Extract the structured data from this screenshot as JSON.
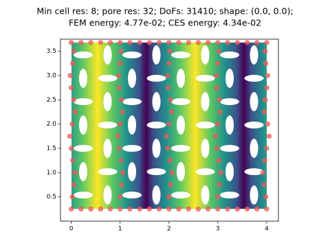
{
  "chart_data": {
    "type": "scatter",
    "title": [
      "Min cell res: 8; pore res: 32; DoFs: 31410; shape: (0.0, 0.0);",
      "FEM energy: 4.77e-02; CES energy: 4.34e-02"
    ],
    "xlim": [
      -0.22,
      4.24
    ],
    "ylim": [
      0.0,
      3.75
    ],
    "xticks": [
      0,
      1,
      2,
      3,
      4
    ],
    "yticks": [
      0.5,
      {
        "value": 1.0,
        "label": "1.0"
      },
      1.5,
      {
        "value": 2.0,
        "label": "2.0"
      },
      2.5,
      {
        "value": 3.0,
        "label": "3.0"
      },
      3.5
    ],
    "color": "#ee5a5a",
    "x": [
      0,
      0.2,
      0.4,
      0.6,
      0.8,
      1,
      1.2,
      1.4,
      1.6,
      1.8,
      2,
      2.2,
      2.4,
      2.6,
      2.8,
      3,
      3.2,
      3.4,
      3.6,
      3.8,
      4,
      0,
      0.2,
      0.4,
      0.6,
      0.8,
      1,
      1.2,
      1.4,
      1.6,
      1.8,
      2,
      2.2,
      2.4,
      2.6,
      2.8,
      3,
      3.2,
      3.4,
      3.6,
      3.8,
      4,
      0.02,
      0.05,
      0.08,
      0.03,
      0,
      -0.03,
      0.02,
      0.08,
      0.05,
      0,
      -0.02,
      0.03,
      0.05,
      3.98,
      3.95,
      3.92,
      3.96,
      4.0,
      4.05,
      4.02,
      3.95,
      3.97,
      4.0,
      4.02,
      3.98,
      3.97,
      1,
      1.03,
      1.06,
      1.02,
      0.98,
      0.95,
      1,
      1.05,
      1.03,
      0.98,
      0.97,
      1,
      1.02,
      2,
      2.03,
      2.06,
      2.02,
      1.98,
      1.95,
      2,
      2.05,
      2.03,
      1.98,
      1.97,
      2,
      2.02,
      3,
      3.03,
      3.06,
      3.02,
      2.98,
      2.95,
      3,
      3.05,
      3.03,
      2.98,
      2.97,
      3,
      3.02
    ],
    "y": [
      3.68,
      3.68,
      3.68,
      3.68,
      3.68,
      3.68,
      3.68,
      3.68,
      3.68,
      3.68,
      3.68,
      3.68,
      3.68,
      3.68,
      3.68,
      3.68,
      3.68,
      3.68,
      3.68,
      3.68,
      3.68,
      0.25,
      0.25,
      0.25,
      0.25,
      0.25,
      0.25,
      0.25,
      0.25,
      0.25,
      0.25,
      0.25,
      0.25,
      0.25,
      0.25,
      0.25,
      0.25,
      0.25,
      0.25,
      0.25,
      0.25,
      0.25,
      0.5,
      0.75,
      1.0,
      1.25,
      1.5,
      1.75,
      2.0,
      2.25,
      2.5,
      2.75,
      3.0,
      3.25,
      3.5,
      0.5,
      0.75,
      1.0,
      1.25,
      1.5,
      1.75,
      2.0,
      2.25,
      2.5,
      2.75,
      3.0,
      3.25,
      3.5,
      0.5,
      0.75,
      1.0,
      1.25,
      1.5,
      1.75,
      2.0,
      2.25,
      2.5,
      2.75,
      3.0,
      3.25,
      3.5,
      0.5,
      0.75,
      1.0,
      1.25,
      1.5,
      1.75,
      2.0,
      2.25,
      2.5,
      2.75,
      3.0,
      3.25,
      3.5,
      0.5,
      0.75,
      1.0,
      1.25,
      1.5,
      1.75,
      2.0,
      2.25,
      2.5,
      2.75,
      3.0,
      3.25,
      3.5
    ]
  }
}
